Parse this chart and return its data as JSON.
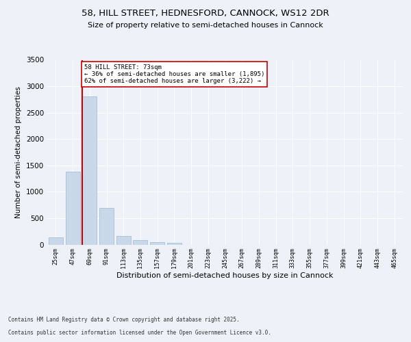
{
  "title_line1": "58, HILL STREET, HEDNESFORD, CANNOCK, WS12 2DR",
  "title_line2": "Size of property relative to semi-detached houses in Cannock",
  "xlabel": "Distribution of semi-detached houses by size in Cannock",
  "ylabel": "Number of semi-detached properties",
  "categories": [
    "25sqm",
    "47sqm",
    "69sqm",
    "91sqm",
    "113sqm",
    "135sqm",
    "157sqm",
    "179sqm",
    "201sqm",
    "223sqm",
    "245sqm",
    "267sqm",
    "289sqm",
    "311sqm",
    "333sqm",
    "355sqm",
    "377sqm",
    "399sqm",
    "421sqm",
    "443sqm",
    "465sqm"
  ],
  "values": [
    140,
    1380,
    2800,
    700,
    160,
    90,
    50,
    30,
    0,
    0,
    0,
    0,
    0,
    0,
    0,
    0,
    0,
    0,
    0,
    0,
    0
  ],
  "bar_color": "#c8d8e8",
  "bar_edge_color": "#a0b8d0",
  "vline_color": "#cc0000",
  "annotation_text_line1": "58 HILL STREET: 73sqm",
  "annotation_text_line2": "← 36% of semi-detached houses are smaller (1,895)",
  "annotation_text_line3": "62% of semi-detached houses are larger (3,222) →",
  "annotation_box_color": "#ffffff",
  "annotation_box_edge": "#cc0000",
  "ylim": [
    0,
    3500
  ],
  "yticks": [
    0,
    500,
    1000,
    1500,
    2000,
    2500,
    3000,
    3500
  ],
  "background_color": "#eef2f8",
  "grid_color": "#ffffff",
  "footer_line1": "Contains HM Land Registry data © Crown copyright and database right 2025.",
  "footer_line2": "Contains public sector information licensed under the Open Government Licence v3.0."
}
